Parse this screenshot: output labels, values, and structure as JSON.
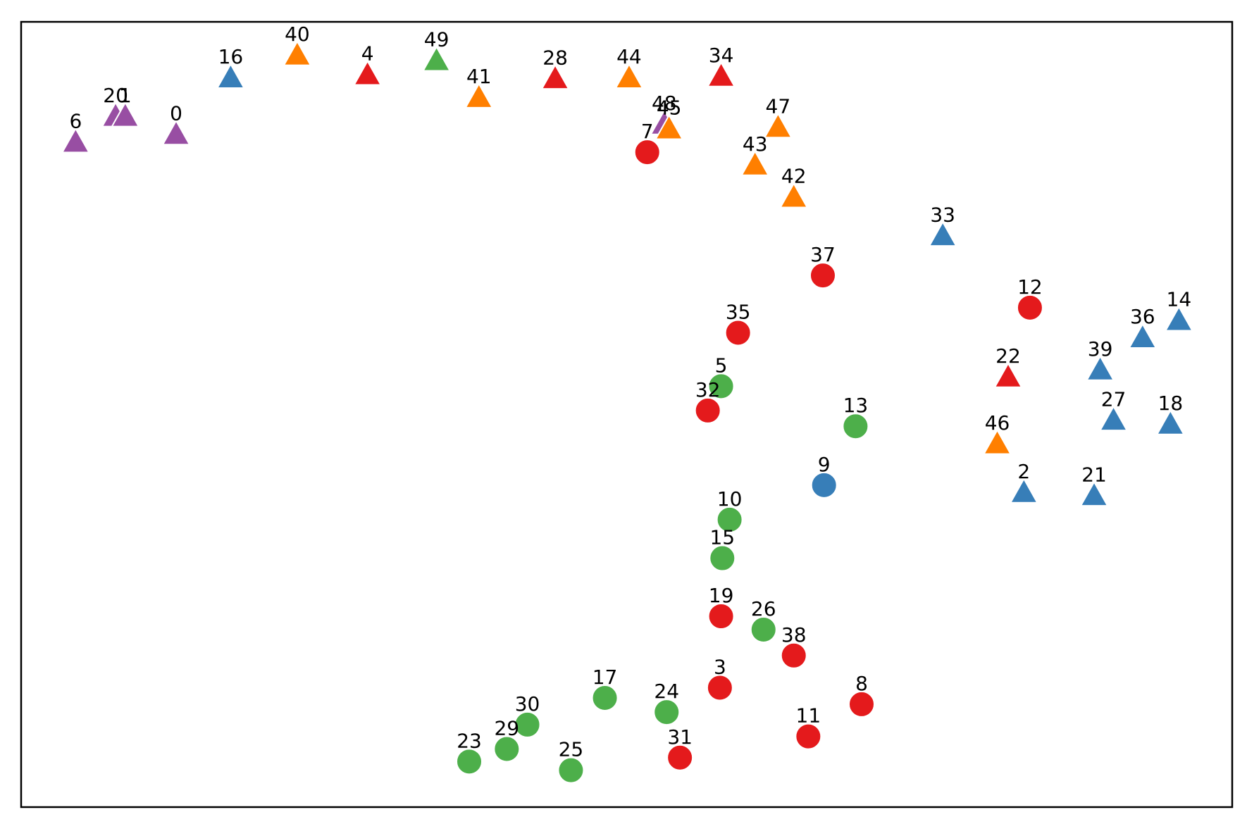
{
  "chart_data": {
    "type": "scatter",
    "title": "",
    "xlabel": "",
    "ylabel": "",
    "xlim": [
      0,
      1000
    ],
    "ylim": [
      0,
      1000
    ],
    "grid": false,
    "axis_ticks": false,
    "marker_colors": {
      "red": "#e41a1c",
      "blue": "#377eb8",
      "green": "#4daf4a",
      "purple": "#984ea3",
      "orange": "#ff7f00"
    },
    "points": [
      {
        "label": "6",
        "x": 45,
        "y": 847,
        "marker": "triangle",
        "color": "purple"
      },
      {
        "label": "20",
        "x": 78,
        "y": 880,
        "marker": "triangle",
        "color": "purple"
      },
      {
        "label": "1",
        "x": 86,
        "y": 880,
        "marker": "triangle",
        "color": "purple"
      },
      {
        "label": "0",
        "x": 128,
        "y": 857,
        "marker": "triangle",
        "color": "purple"
      },
      {
        "label": "16",
        "x": 173,
        "y": 929,
        "marker": "triangle",
        "color": "blue"
      },
      {
        "label": "40",
        "x": 228,
        "y": 958,
        "marker": "triangle",
        "color": "orange"
      },
      {
        "label": "4",
        "x": 286,
        "y": 933,
        "marker": "triangle",
        "color": "red"
      },
      {
        "label": "49",
        "x": 343,
        "y": 951,
        "marker": "triangle",
        "color": "green"
      },
      {
        "label": "41",
        "x": 378,
        "y": 904,
        "marker": "triangle",
        "color": "orange"
      },
      {
        "label": "28",
        "x": 441,
        "y": 928,
        "marker": "triangle",
        "color": "red"
      },
      {
        "label": "44",
        "x": 502,
        "y": 929,
        "marker": "triangle",
        "color": "orange"
      },
      {
        "label": "48",
        "x": 531,
        "y": 870,
        "marker": "triangle",
        "color": "purple"
      },
      {
        "label": "45",
        "x": 535,
        "y": 864,
        "marker": "triangle",
        "color": "orange"
      },
      {
        "label": "7",
        "x": 517,
        "y": 834,
        "marker": "circle",
        "color": "red"
      },
      {
        "label": "34",
        "x": 578,
        "y": 931,
        "marker": "triangle",
        "color": "red"
      },
      {
        "label": "47",
        "x": 625,
        "y": 866,
        "marker": "triangle",
        "color": "orange"
      },
      {
        "label": "43",
        "x": 606,
        "y": 818,
        "marker": "triangle",
        "color": "orange"
      },
      {
        "label": "42",
        "x": 638,
        "y": 777,
        "marker": "triangle",
        "color": "orange"
      },
      {
        "label": "33",
        "x": 761,
        "y": 728,
        "marker": "triangle",
        "color": "blue"
      },
      {
        "label": "37",
        "x": 662,
        "y": 677,
        "marker": "circle",
        "color": "red"
      },
      {
        "label": "12",
        "x": 833,
        "y": 636,
        "marker": "circle",
        "color": "red"
      },
      {
        "label": "35",
        "x": 592,
        "y": 604,
        "marker": "circle",
        "color": "red"
      },
      {
        "label": "14",
        "x": 956,
        "y": 620,
        "marker": "triangle",
        "color": "blue"
      },
      {
        "label": "36",
        "x": 926,
        "y": 598,
        "marker": "triangle",
        "color": "blue"
      },
      {
        "label": "39",
        "x": 891,
        "y": 557,
        "marker": "triangle",
        "color": "blue"
      },
      {
        "label": "22",
        "x": 815,
        "y": 548,
        "marker": "triangle",
        "color": "red"
      },
      {
        "label": "5",
        "x": 578,
        "y": 536,
        "marker": "circle",
        "color": "green"
      },
      {
        "label": "32",
        "x": 567,
        "y": 505,
        "marker": "circle",
        "color": "red"
      },
      {
        "label": "13",
        "x": 689,
        "y": 485,
        "marker": "circle",
        "color": "green"
      },
      {
        "label": "27",
        "x": 902,
        "y": 493,
        "marker": "triangle",
        "color": "blue"
      },
      {
        "label": "18",
        "x": 949,
        "y": 488,
        "marker": "triangle",
        "color": "blue"
      },
      {
        "label": "46",
        "x": 806,
        "y": 463,
        "marker": "triangle",
        "color": "orange"
      },
      {
        "label": "9",
        "x": 663,
        "y": 410,
        "marker": "circle",
        "color": "blue"
      },
      {
        "label": "2",
        "x": 828,
        "y": 401,
        "marker": "triangle",
        "color": "blue"
      },
      {
        "label": "21",
        "x": 886,
        "y": 397,
        "marker": "triangle",
        "color": "blue"
      },
      {
        "label": "10",
        "x": 585,
        "y": 366,
        "marker": "circle",
        "color": "green"
      },
      {
        "label": "15",
        "x": 579,
        "y": 317,
        "marker": "circle",
        "color": "green"
      },
      {
        "label": "19",
        "x": 578,
        "y": 243,
        "marker": "circle",
        "color": "red"
      },
      {
        "label": "26",
        "x": 613,
        "y": 226,
        "marker": "circle",
        "color": "green"
      },
      {
        "label": "38",
        "x": 638,
        "y": 193,
        "marker": "circle",
        "color": "red"
      },
      {
        "label": "3",
        "x": 577,
        "y": 152,
        "marker": "circle",
        "color": "red"
      },
      {
        "label": "8",
        "x": 694,
        "y": 131,
        "marker": "circle",
        "color": "red"
      },
      {
        "label": "17",
        "x": 482,
        "y": 139,
        "marker": "circle",
        "color": "green"
      },
      {
        "label": "24",
        "x": 533,
        "y": 121,
        "marker": "circle",
        "color": "green"
      },
      {
        "label": "30",
        "x": 418,
        "y": 105,
        "marker": "circle",
        "color": "green"
      },
      {
        "label": "29",
        "x": 401,
        "y": 74,
        "marker": "circle",
        "color": "green"
      },
      {
        "label": "23",
        "x": 370,
        "y": 58,
        "marker": "circle",
        "color": "green"
      },
      {
        "label": "25",
        "x": 454,
        "y": 47,
        "marker": "circle",
        "color": "green"
      },
      {
        "label": "31",
        "x": 544,
        "y": 63,
        "marker": "circle",
        "color": "red"
      },
      {
        "label": "11",
        "x": 650,
        "y": 90,
        "marker": "circle",
        "color": "red"
      }
    ]
  }
}
